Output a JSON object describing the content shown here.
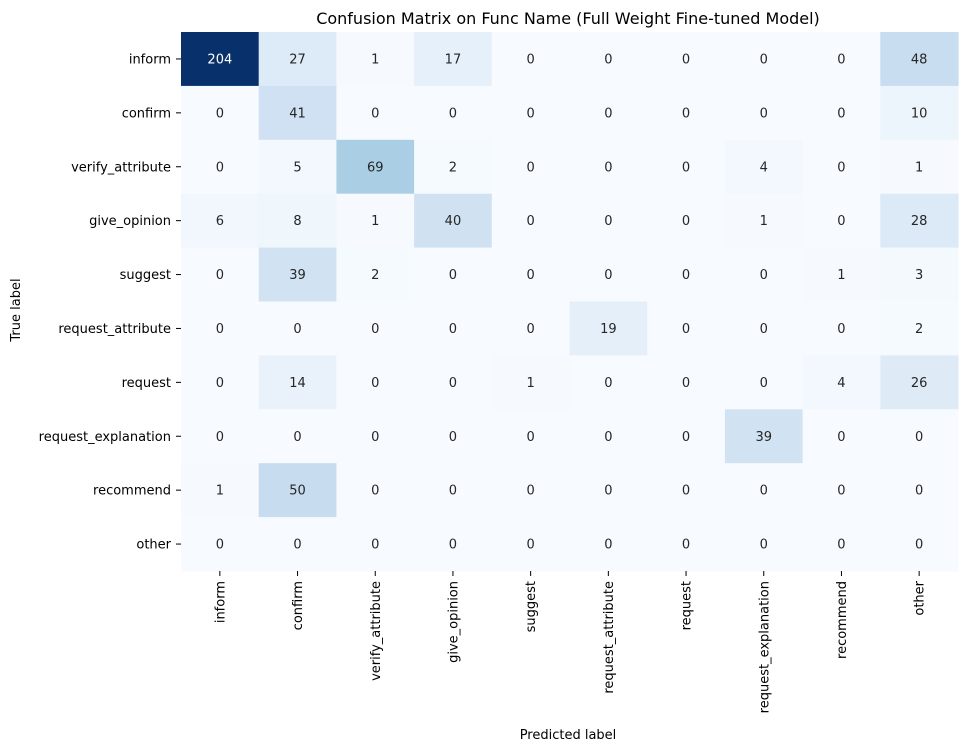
{
  "chart_data": {
    "type": "heatmap",
    "title": "Confusion Matrix on Func Name (Full Weight Fine-tuned Model)",
    "xlabel": "Predicted label",
    "ylabel": "True label",
    "x_categories": [
      "inform",
      "confirm",
      "verify_attribute",
      "give_opinion",
      "suggest",
      "request_attribute",
      "request",
      "request_explanation",
      "recommend",
      "other"
    ],
    "y_categories": [
      "inform",
      "confirm",
      "verify_attribute",
      "give_opinion",
      "suggest",
      "request_attribute",
      "request",
      "request_explanation",
      "recommend",
      "other"
    ],
    "values": [
      [
        204,
        27,
        1,
        17,
        0,
        0,
        0,
        0,
        0,
        48
      ],
      [
        0,
        41,
        0,
        0,
        0,
        0,
        0,
        0,
        0,
        10
      ],
      [
        0,
        5,
        69,
        2,
        0,
        0,
        0,
        4,
        0,
        1
      ],
      [
        6,
        8,
        1,
        40,
        0,
        0,
        0,
        1,
        0,
        28
      ],
      [
        0,
        39,
        2,
        0,
        0,
        0,
        0,
        0,
        1,
        3
      ],
      [
        0,
        0,
        0,
        0,
        0,
        19,
        0,
        0,
        0,
        2
      ],
      [
        0,
        14,
        0,
        0,
        1,
        0,
        0,
        0,
        4,
        26
      ],
      [
        0,
        0,
        0,
        0,
        0,
        0,
        0,
        39,
        0,
        0
      ],
      [
        1,
        50,
        0,
        0,
        0,
        0,
        0,
        0,
        0,
        0
      ],
      [
        0,
        0,
        0,
        0,
        0,
        0,
        0,
        0,
        0,
        0
      ]
    ],
    "colormap": "Blues",
    "color_range": [
      0,
      204
    ],
    "colorbar": false,
    "annotations": true
  }
}
